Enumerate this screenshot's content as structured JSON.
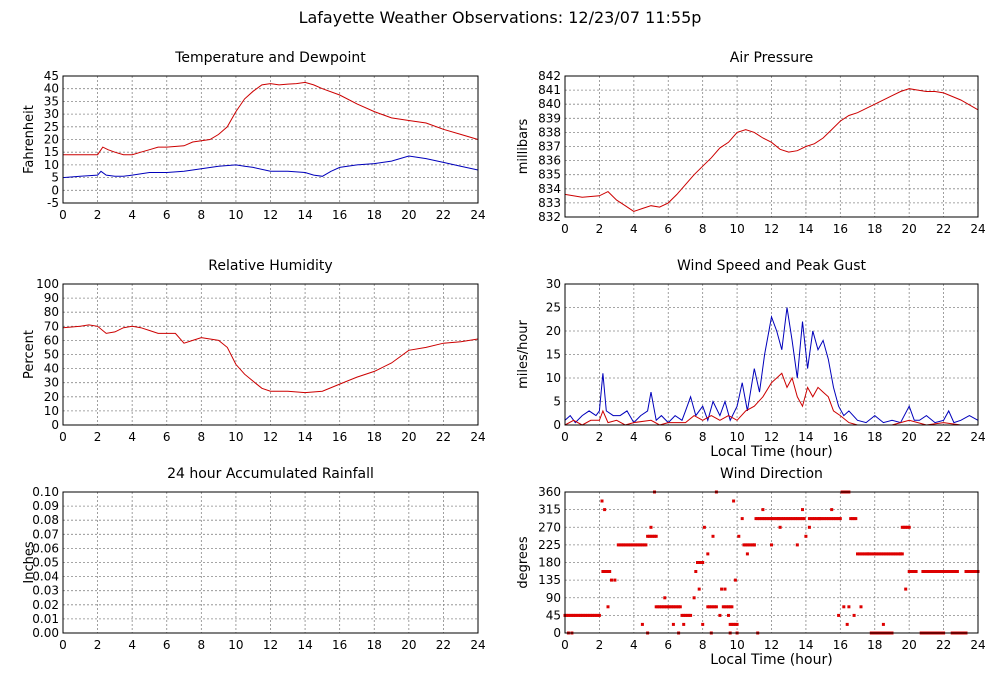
{
  "page": {
    "title": "Lafayette Weather Observations: 12/23/07 11:55p"
  },
  "chart_data": [
    {
      "type": "line",
      "title": "Temperature and Dewpoint",
      "xlabel": "",
      "ylabel": "Fahrenheit",
      "xlim": [
        0,
        24
      ],
      "ylim": [
        -5,
        45
      ],
      "xticks": [
        0,
        2,
        4,
        6,
        8,
        10,
        12,
        14,
        16,
        18,
        20,
        22,
        24
      ],
      "yticks": [
        -5,
        0,
        5,
        10,
        15,
        20,
        25,
        30,
        35,
        40,
        45
      ],
      "grid": true,
      "series": [
        {
          "color": "#cc0000",
          "x": [
            0,
            1,
            2,
            2.3,
            2.6,
            3,
            3.5,
            4,
            4.5,
            5,
            5.5,
            6,
            7,
            7.5,
            8,
            8.5,
            9,
            9.5,
            10,
            10.5,
            11,
            11.5,
            12,
            12.5,
            13,
            13.5,
            14,
            14.5,
            15,
            16,
            17,
            18,
            19,
            20,
            21,
            22,
            23,
            24
          ],
          "y": [
            14,
            14,
            14,
            17,
            16,
            15,
            14,
            14,
            15,
            16,
            17,
            17,
            17.5,
            19,
            19.5,
            20,
            22,
            25,
            31,
            36,
            39,
            41.5,
            42,
            41.5,
            41.8,
            42,
            42.5,
            41.5,
            40,
            37.5,
            34,
            31,
            28.5,
            27.5,
            26.5,
            24,
            22,
            20
          ]
        },
        {
          "color": "#0000bb",
          "x": [
            0,
            1,
            2,
            2.2,
            2.5,
            3,
            3.5,
            4,
            5,
            6,
            7,
            8,
            9,
            10,
            10.5,
            11,
            12,
            13,
            14,
            14.5,
            15,
            15.5,
            16,
            17,
            18,
            19,
            20,
            21,
            22,
            23,
            24
          ],
          "y": [
            5,
            5.5,
            6,
            7.5,
            6,
            5.5,
            5.5,
            6,
            7,
            7,
            7.5,
            8.5,
            9.5,
            10,
            9.5,
            9,
            7.5,
            7.5,
            7,
            6,
            5.5,
            7.5,
            9,
            10,
            10.5,
            11.5,
            13.5,
            12.5,
            11,
            9.5,
            8
          ]
        }
      ]
    },
    {
      "type": "line",
      "title": "Air Pressure",
      "xlabel": "",
      "ylabel": "millibars",
      "xlim": [
        0,
        24
      ],
      "ylim": [
        832,
        842
      ],
      "xticks": [
        0,
        2,
        4,
        6,
        8,
        10,
        12,
        14,
        16,
        18,
        20,
        22,
        24
      ],
      "yticks": [
        832,
        833,
        834,
        835,
        836,
        837,
        838,
        839,
        840,
        841,
        842
      ],
      "grid": true,
      "series": [
        {
          "color": "#cc0000",
          "x": [
            0,
            1,
            2,
            2.5,
            3,
            3.5,
            4,
            4.5,
            5,
            5.5,
            6,
            6.5,
            7,
            7.5,
            8,
            8.5,
            9,
            9.5,
            10,
            10.5,
            11,
            11.5,
            12,
            12.5,
            13,
            13.5,
            14,
            14.5,
            15,
            15.5,
            16,
            16.5,
            17,
            18,
            19,
            19.5,
            20,
            20.5,
            21,
            21.5,
            22,
            23,
            24
          ],
          "y": [
            833.6,
            833.4,
            833.5,
            833.8,
            833.2,
            832.8,
            832.4,
            832.6,
            832.8,
            832.7,
            833,
            833.6,
            834.3,
            835,
            835.6,
            836.2,
            836.9,
            837.3,
            838,
            838.2,
            838,
            837.6,
            837.3,
            836.8,
            836.6,
            836.7,
            837,
            837.2,
            837.6,
            838.2,
            838.8,
            839.2,
            839.4,
            840,
            840.6,
            840.9,
            841.1,
            841,
            840.9,
            840.9,
            840.8,
            840.3,
            839.6
          ]
        }
      ]
    },
    {
      "type": "line",
      "title": "Relative Humidity",
      "xlabel": "",
      "ylabel": "Percent",
      "xlim": [
        0,
        24
      ],
      "ylim": [
        0,
        100
      ],
      "xticks": [
        0,
        2,
        4,
        6,
        8,
        10,
        12,
        14,
        16,
        18,
        20,
        22,
        24
      ],
      "yticks": [
        0,
        10,
        20,
        30,
        40,
        50,
        60,
        70,
        80,
        90,
        100
      ],
      "grid": true,
      "series": [
        {
          "color": "#cc0000",
          "x": [
            0,
            1,
            1.5,
            2,
            2.5,
            3,
            3.5,
            4,
            4.5,
            5,
            5.5,
            6,
            6.5,
            7,
            7.5,
            8,
            8.5,
            9,
            9.5,
            10,
            10.5,
            11,
            11.5,
            12,
            13,
            14,
            15,
            16,
            17,
            18,
            19,
            20,
            21,
            22,
            23,
            24
          ],
          "y": [
            69,
            70,
            71,
            70,
            65,
            66,
            69,
            70,
            69,
            67,
            65,
            65,
            65,
            58,
            60,
            62,
            61,
            60,
            55,
            43,
            36,
            31,
            26,
            24,
            24,
            23,
            24,
            29,
            34,
            38,
            44,
            53,
            55,
            58,
            59,
            61
          ]
        }
      ]
    },
    {
      "type": "line",
      "title": "Wind Speed and Peak Gust",
      "xlabel": "Local Time (hour)",
      "ylabel": "miles/hour",
      "xlim": [
        0,
        24
      ],
      "ylim": [
        0,
        30
      ],
      "xticks": [
        0,
        2,
        4,
        6,
        8,
        10,
        12,
        14,
        16,
        18,
        20,
        22,
        24
      ],
      "yticks": [
        0,
        5,
        10,
        15,
        20,
        25,
        30
      ],
      "grid": true,
      "series": [
        {
          "color": "#0000bb",
          "x": [
            0,
            0.3,
            0.6,
            1,
            1.4,
            1.8,
            2,
            2.2,
            2.4,
            2.8,
            3.2,
            3.6,
            4,
            4.4,
            4.8,
            5,
            5.3,
            5.6,
            6,
            6.4,
            6.8,
            7,
            7.3,
            7.6,
            8,
            8.3,
            8.6,
            9,
            9.3,
            9.6,
            10,
            10.3,
            10.6,
            11,
            11.3,
            11.6,
            12,
            12.3,
            12.6,
            12.9,
            13.2,
            13.5,
            13.8,
            14.1,
            14.4,
            14.7,
            15,
            15.3,
            15.6,
            15.9,
            16.2,
            16.5,
            17,
            17.5,
            18,
            18.5,
            19,
            19.5,
            20,
            20.3,
            20.6,
            21,
            21.5,
            22,
            22.3,
            22.6,
            23,
            23.5,
            24
          ],
          "y": [
            1,
            2,
            0.5,
            2,
            3,
            2,
            3,
            11,
            3,
            2,
            2,
            3,
            0.5,
            2,
            3,
            7,
            1,
            2,
            0.5,
            2,
            1,
            3,
            6,
            2,
            4,
            1,
            5,
            2,
            5,
            1,
            4,
            9,
            3,
            12,
            7,
            15,
            23,
            20,
            16,
            25,
            18,
            10,
            22,
            12,
            20,
            16,
            18,
            14,
            8,
            4,
            2,
            3,
            1,
            0.5,
            2,
            0.5,
            1,
            0.5,
            4,
            1,
            1,
            2,
            0.5,
            1,
            3,
            0.5,
            1,
            2,
            1
          ]
        },
        {
          "color": "#cc0000",
          "x": [
            0,
            0.5,
            1,
            1.5,
            2,
            2.2,
            2.5,
            3,
            3.5,
            4,
            5,
            5.5,
            6,
            7,
            7.5,
            8,
            8.5,
            9,
            9.5,
            10,
            10.5,
            11,
            11.5,
            12,
            12.3,
            12.6,
            12.9,
            13.2,
            13.5,
            13.8,
            14.1,
            14.4,
            14.7,
            15,
            15.3,
            15.6,
            16,
            16.5,
            17,
            18,
            19,
            20,
            21,
            22,
            23,
            24
          ],
          "y": [
            0,
            1,
            0,
            1,
            1,
            3,
            0.5,
            1,
            0,
            0.5,
            1,
            0,
            0.5,
            0.5,
            2,
            1,
            2,
            1,
            2,
            1,
            3,
            4,
            6,
            9,
            10,
            11,
            8,
            10,
            6,
            4,
            8,
            6,
            8,
            7,
            6,
            3,
            2,
            0.5,
            0,
            0,
            0,
            1,
            0,
            0.5,
            0,
            0
          ]
        }
      ]
    },
    {
      "type": "line",
      "title": "24 hour Accumulated Rainfall",
      "xlabel": "",
      "ylabel": "Inches",
      "xlim": [
        0,
        24
      ],
      "ylim": [
        0,
        0.1
      ],
      "xticks": [
        0,
        2,
        4,
        6,
        8,
        10,
        12,
        14,
        16,
        18,
        20,
        22,
        24
      ],
      "yticks": [
        "0.00",
        "0.01",
        "0.02",
        "0.03",
        "0.04",
        "0.05",
        "0.06",
        "0.07",
        "0.08",
        "0.09",
        "0.10"
      ],
      "grid": true,
      "series": [
        {
          "color": "#cc0000",
          "x": [
            0,
            24
          ],
          "y": [
            0,
            0
          ]
        }
      ]
    },
    {
      "type": "scatter",
      "title": "Wind Direction",
      "xlabel": "Local Time (hour)",
      "ylabel": "degrees",
      "xlim": [
        0,
        24
      ],
      "ylim": [
        0,
        360
      ],
      "xticks": [
        0,
        2,
        4,
        6,
        8,
        10,
        12,
        14,
        16,
        18,
        20,
        22,
        24
      ],
      "yticks": [
        0,
        45,
        90,
        135,
        180,
        225,
        270,
        315,
        360
      ],
      "grid": true,
      "runs": [
        [
          0.0,
          2.0,
          45
        ],
        [
          2.2,
          2.6,
          157
        ],
        [
          3.1,
          4.7,
          225
        ],
        [
          4.8,
          5.3,
          247
        ],
        [
          5.3,
          6.7,
          67
        ],
        [
          6.8,
          7.2,
          45
        ],
        [
          7.7,
          8.0,
          180
        ],
        [
          8.3,
          8.8,
          67
        ],
        [
          9.2,
          9.7,
          67
        ],
        [
          9.6,
          10.0,
          22
        ],
        [
          10.4,
          11.0,
          225
        ],
        [
          11.1,
          12.4,
          292
        ],
        [
          12.4,
          13.9,
          292
        ],
        [
          14.2,
          15.5,
          292
        ],
        [
          15.6,
          16.0,
          292
        ],
        [
          16.1,
          16.5,
          360
        ],
        [
          16.6,
          16.9,
          292
        ],
        [
          17.0,
          19.6,
          202
        ],
        [
          17.8,
          19.0,
          0
        ],
        [
          19.6,
          20.0,
          270
        ],
        [
          20.0,
          20.4,
          157
        ],
        [
          20.7,
          22.0,
          0
        ],
        [
          20.8,
          22.8,
          157
        ],
        [
          22.5,
          23.3,
          0
        ],
        [
          23.3,
          24.0,
          157
        ]
      ],
      "points": [
        [
          0.2,
          0
        ],
        [
          0.4,
          0
        ],
        [
          2.15,
          337
        ],
        [
          2.3,
          315
        ],
        [
          2.5,
          67
        ],
        [
          2.7,
          135
        ],
        [
          2.9,
          135
        ],
        [
          4.5,
          22
        ],
        [
          4.8,
          0
        ],
        [
          5.0,
          270
        ],
        [
          5.2,
          360
        ],
        [
          5.8,
          90
        ],
        [
          6.3,
          22
        ],
        [
          6.6,
          0
        ],
        [
          6.9,
          22
        ],
        [
          7.3,
          45
        ],
        [
          7.5,
          90
        ],
        [
          7.6,
          157
        ],
        [
          7.8,
          112
        ],
        [
          8.0,
          22
        ],
        [
          8.1,
          270
        ],
        [
          8.3,
          202
        ],
        [
          8.5,
          0
        ],
        [
          8.6,
          247
        ],
        [
          8.8,
          360
        ],
        [
          9.0,
          45
        ],
        [
          9.1,
          112
        ],
        [
          9.3,
          112
        ],
        [
          9.5,
          45
        ],
        [
          9.6,
          0
        ],
        [
          9.8,
          337
        ],
        [
          9.9,
          135
        ],
        [
          10.0,
          0
        ],
        [
          10.1,
          247
        ],
        [
          10.3,
          292
        ],
        [
          10.6,
          202
        ],
        [
          11.0,
          225
        ],
        [
          11.2,
          0
        ],
        [
          11.5,
          315
        ],
        [
          12.0,
          225
        ],
        [
          12.5,
          270
        ],
        [
          13.5,
          225
        ],
        [
          13.8,
          315
        ],
        [
          14.0,
          247
        ],
        [
          14.2,
          270
        ],
        [
          14.8,
          292
        ],
        [
          15.5,
          315
        ],
        [
          15.9,
          45
        ],
        [
          16.2,
          67
        ],
        [
          16.4,
          22
        ],
        [
          16.5,
          67
        ],
        [
          16.8,
          45
        ],
        [
          17.2,
          67
        ],
        [
          17.6,
          202
        ],
        [
          18.5,
          22
        ],
        [
          19.0,
          0
        ],
        [
          19.5,
          202
        ],
        [
          19.8,
          112
        ]
      ]
    }
  ]
}
